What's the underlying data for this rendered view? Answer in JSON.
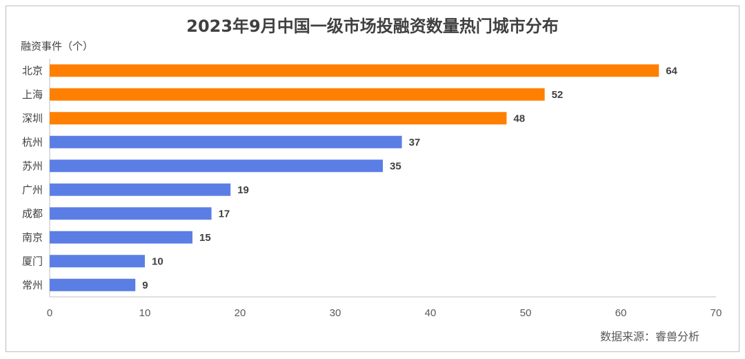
{
  "chart_data": {
    "type": "bar",
    "orientation": "horizontal",
    "title": "2023年9月中国一级市场投融资数量热门城市分布",
    "ylabel": "融资事件（个）",
    "categories": [
      "北京",
      "上海",
      "深圳",
      "杭州",
      "苏州",
      "广州",
      "成都",
      "南京",
      "厦门",
      "常州"
    ],
    "values": [
      64,
      52,
      48,
      37,
      35,
      19,
      17,
      15,
      10,
      9
    ],
    "bar_colors": [
      "#ff7f00",
      "#ff7f00",
      "#ff7f00",
      "#5b7ee5",
      "#5b7ee5",
      "#5b7ee5",
      "#5b7ee5",
      "#5b7ee5",
      "#5b7ee5",
      "#5b7ee5"
    ],
    "xlim": [
      0,
      70
    ],
    "xticks": [
      0,
      10,
      20,
      30,
      40,
      50,
      60,
      70
    ],
    "grid": false,
    "data_labels": true
  },
  "source": "数据来源：睿兽分析"
}
